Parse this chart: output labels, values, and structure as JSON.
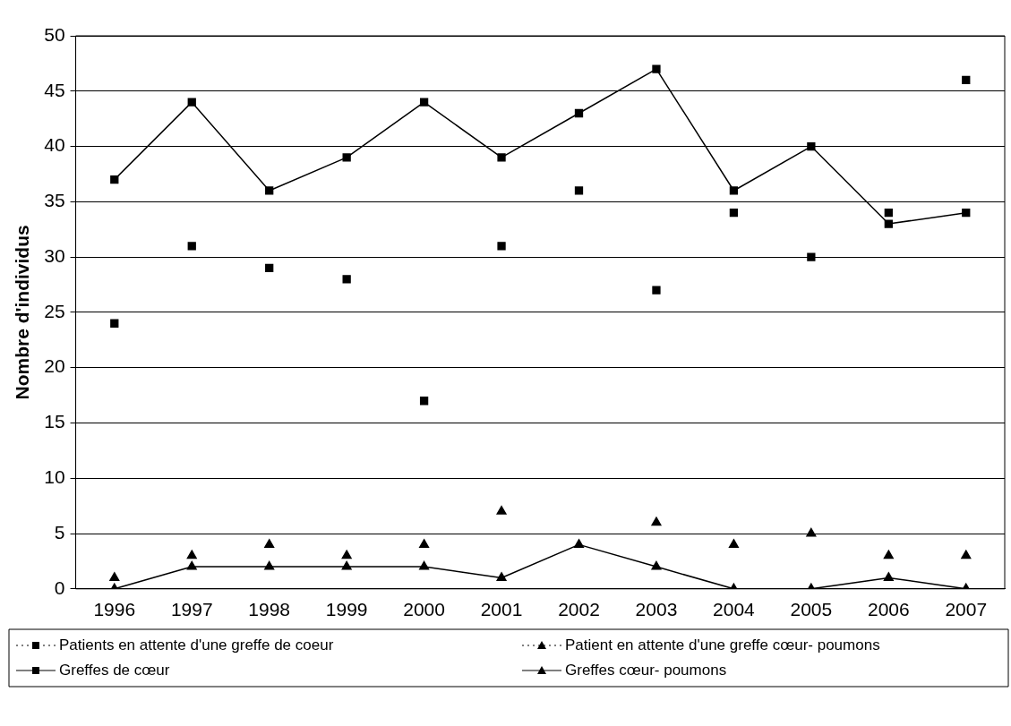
{
  "chart_data": {
    "type": "line",
    "ylabel": "Nombre d'individus",
    "categories": [
      "1996",
      "1997",
      "1998",
      "1999",
      "2000",
      "2001",
      "2002",
      "2003",
      "2004",
      "2005",
      "2006",
      "2007"
    ],
    "ylim": [
      0,
      50
    ],
    "yticks": [
      0,
      5,
      10,
      15,
      20,
      25,
      30,
      35,
      40,
      45,
      50
    ],
    "grid": "y",
    "legend": "bottom",
    "series": [
      {
        "name": "Patients en attente d'une greffe de coeur",
        "type": "scatter",
        "color": "#000000",
        "marker": "square",
        "line_style": "dotted",
        "values": [
          24,
          31,
          29,
          28,
          17,
          31,
          36,
          27,
          34,
          30,
          34,
          46
        ]
      },
      {
        "name": "Patient en attente d'une greffe cœur- poumons",
        "type": "scatter",
        "color": "#000000",
        "marker": "triangle",
        "line_style": "dotted",
        "values": [
          1,
          3,
          4,
          3,
          4,
          7,
          null,
          6,
          4,
          5,
          3,
          3
        ]
      },
      {
        "name": "Greffes de cœur",
        "type": "line",
        "color": "#000000",
        "marker": "square",
        "line_style": "solid",
        "values": [
          37,
          44,
          36,
          39,
          44,
          39,
          43,
          47,
          36,
          40,
          33,
          34
        ]
      },
      {
        "name": "Greffes cœur- poumons",
        "type": "line",
        "color": "#000000",
        "marker": "triangle",
        "line_style": "solid",
        "values": [
          0,
          2,
          2,
          2,
          2,
          1,
          4,
          2,
          0,
          0,
          1,
          0
        ]
      }
    ]
  }
}
